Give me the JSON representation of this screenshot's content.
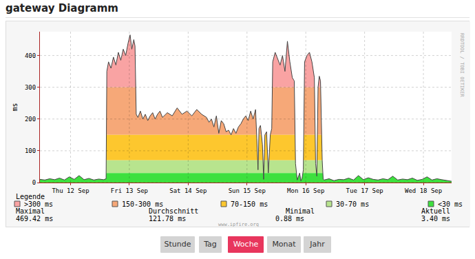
{
  "page": {
    "title": "gateway Diagramm",
    "buttons": [
      "Stunde",
      "Tag",
      "Woche",
      "Monat",
      "Jahr"
    ],
    "active": "Woche"
  },
  "chart_data": {
    "type": "area",
    "color": "#444444",
    "x": [
      0,
      2,
      4,
      6,
      8,
      10,
      12,
      14,
      16,
      18,
      20,
      22,
      24,
      26,
      27,
      27.3,
      28,
      29,
      30,
      31,
      32,
      33,
      34,
      35,
      36,
      36.8,
      37.5,
      38.3,
      38.8,
      39.3,
      40,
      41,
      42,
      43,
      44,
      45,
      46,
      47,
      48,
      49,
      50,
      52,
      54,
      56,
      58,
      60,
      62,
      64,
      66,
      68,
      69,
      70,
      71,
      72,
      73,
      74,
      75,
      76,
      77,
      78,
      79,
      80,
      81,
      82,
      83,
      84,
      85,
      86,
      87,
      88,
      88.5,
      89,
      89.4,
      90,
      90.8,
      91.3,
      91.8,
      92.5,
      93.2,
      94,
      94.6,
      95,
      96,
      97,
      98,
      99,
      100,
      101,
      102,
      103,
      103.8,
      104.3,
      105,
      106,
      106.5,
      107,
      107.5,
      108,
      109,
      110,
      111,
      112,
      112.5,
      113,
      113.5,
      114,
      114.5,
      115.2,
      115.6,
      116,
      118,
      120,
      122,
      124,
      126,
      128,
      130,
      132,
      134,
      136,
      138,
      140,
      142,
      144,
      146,
      148,
      150,
      152,
      154,
      156,
      158,
      160,
      162,
      164,
      166,
      168
    ],
    "values": [
      10,
      8,
      12,
      9,
      14,
      8,
      18,
      10,
      22,
      9,
      13,
      8,
      11,
      9,
      12,
      350,
      380,
      360,
      395,
      370,
      410,
      385,
      420,
      400,
      440,
      465,
      420,
      450,
      430,
      215,
      205,
      225,
      200,
      215,
      195,
      210,
      220,
      200,
      215,
      225,
      205,
      220,
      210,
      235,
      215,
      225,
      210,
      230,
      215,
      205,
      190,
      200,
      175,
      210,
      155,
      195,
      185,
      160,
      165,
      150,
      170,
      155,
      175,
      185,
      200,
      210,
      195,
      225,
      200,
      230,
      140,
      40,
      170,
      180,
      120,
      10,
      150,
      160,
      30,
      150,
      170,
      380,
      410,
      390,
      370,
      400,
      350,
      445,
      380,
      330,
      320,
      60,
      8,
      30,
      5,
      15,
      40,
      380,
      400,
      410,
      380,
      330,
      60,
      20,
      300,
      335,
      320,
      70,
      10,
      8,
      12,
      6,
      10,
      9,
      14,
      8,
      22,
      9,
      15,
      10,
      8,
      12,
      9,
      20,
      8,
      11,
      9,
      14,
      7,
      10,
      18,
      8,
      12,
      9,
      6,
      4
    ],
    "xlim": [
      0,
      168
    ],
    "xticks": [
      {
        "value": 12.5,
        "label": "Thu 12 Sep"
      },
      {
        "value": 36.5,
        "label": "Fri 13 Sep"
      },
      {
        "value": 60.5,
        "label": "Sat 14 Sep"
      },
      {
        "value": 84.5,
        "label": "Sun 15 Sep"
      },
      {
        "value": 108.5,
        "label": "Mon 16 Sep"
      },
      {
        "value": 132.5,
        "label": "Tue 17 Sep"
      },
      {
        "value": 156.5,
        "label": "Wed 18 Sep"
      }
    ],
    "ylim": [
      0,
      475
    ],
    "yticks": [
      0,
      100,
      200,
      300,
      400
    ],
    "y_label": "ms",
    "grid": true,
    "legend_title": "Legende",
    "bands": [
      {
        "label": ">300 ms",
        "from": 300,
        "color": "#f9a3a3"
      },
      {
        "label": "150-300 ms",
        "from": 150,
        "color": "#f6a878"
      },
      {
        "label": "70-150 ms",
        "from": 70,
        "color": "#fdc72e"
      },
      {
        "label": "30-70 ms",
        "from": 30,
        "color": "#b8e48e"
      },
      {
        "label": "<30 ms",
        "from": 0,
        "color": "#3ee03e"
      }
    ],
    "stats": [
      {
        "label": "Maximal",
        "value": "469.42 ms"
      },
      {
        "label": "Durchschnitt",
        "value": "121.78 ms"
      },
      {
        "label": "Minimal",
        "value": "0.88 ms"
      },
      {
        "label": "Aktuell",
        "value": "3.40 ms"
      }
    ],
    "watermark": "RRDTOOL / TOBI OETIKER",
    "footer": "www.ipfire.org"
  }
}
